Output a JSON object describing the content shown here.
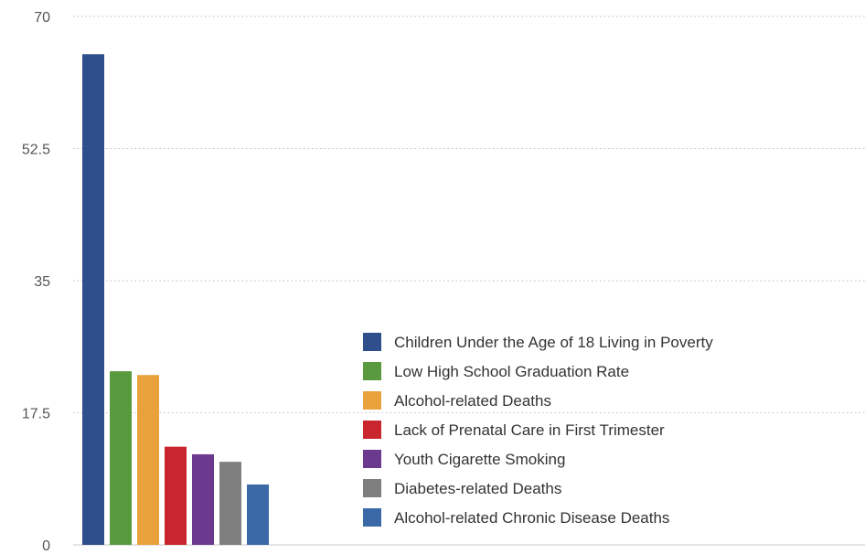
{
  "chart_data": {
    "type": "bar",
    "yticks": [
      "0",
      "17.5",
      "35",
      "52.5",
      "70"
    ],
    "ylim": [
      0,
      70
    ],
    "grid": true,
    "legend_position": "right",
    "series": [
      {
        "name": "Children Under the Age of 18 Living in Poverty",
        "value": 65,
        "color": "#2f4f8c"
      },
      {
        "name": "Low High School Graduation Rate",
        "value": 23,
        "color": "#5a9a3e"
      },
      {
        "name": "Alcohol-related Deaths",
        "value": 22.5,
        "color": "#e9a23b"
      },
      {
        "name": "Lack of Prenatal Care in First Trimester",
        "value": 13,
        "color": "#c9252e"
      },
      {
        "name": "Youth Cigarette Smoking",
        "value": 12,
        "color": "#6b3a8e"
      },
      {
        "name": "Diabetes-related Deaths",
        "value": 11,
        "color": "#7f7f7f"
      },
      {
        "name": "Alcohol-related Chronic Disease Deaths",
        "value": 8,
        "color": "#3b69a8"
      }
    ]
  }
}
